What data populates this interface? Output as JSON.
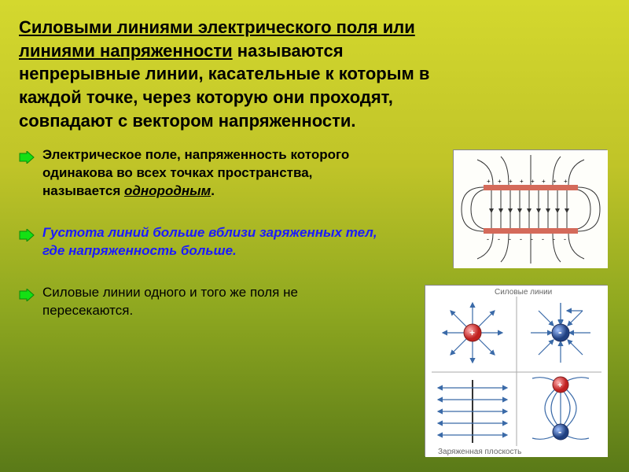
{
  "title": {
    "underlined": "Силовыми линиями электрического поля или линиями напряженности",
    "rest": " называются непрерывные линии, касательные к которым в каждой точке, через которую они проходят, совпадают с вектором напряженности."
  },
  "points": [
    {
      "pre": "Электрическое поле, напряженность которого одинакова во всех точках пространства, называется ",
      "uword": "однородным",
      "post": ".",
      "class": "p1"
    },
    {
      "pre": "Густота линий больше вблизи заряженных тел, где напряженность больше.",
      "uword": "",
      "post": "",
      "class": "p2"
    },
    {
      "pre": "Силовые линии одного и того же поля не пересекаются.",
      "uword": "",
      "post": "",
      "class": "p3"
    }
  ],
  "bullet": {
    "fill": "#14e014",
    "stroke": "#0a8a0a"
  },
  "fig1": {
    "plate_color": "#d46a5a",
    "line_color": "#333333",
    "arrow_color": "#333333",
    "bg": "#fefefa"
  },
  "fig2": {
    "caption_top": "Силовые линии",
    "caption_bottom": "Заряженная плоскость",
    "pos_color": "#e03030",
    "neg_color": "#3060c0",
    "sphere_stroke": "#305080",
    "line_color": "#3a6aa8",
    "bg": "#ffffff"
  }
}
